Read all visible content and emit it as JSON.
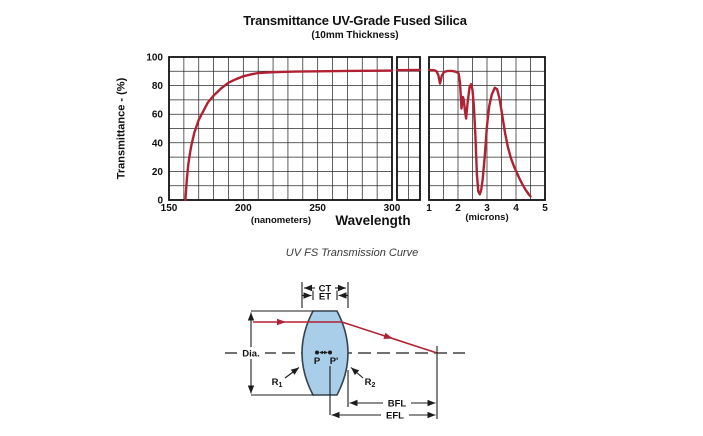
{
  "chart_data": {
    "type": "line",
    "title": "Transmittance UV-Grade Fused Silica",
    "subtitle": "(10mm Thickness)",
    "ylabel": "Transmittance - (%)",
    "xlabel": "Wavelength",
    "ylim": [
      0,
      100
    ],
    "yticks": [
      100,
      80,
      60,
      40,
      20,
      0
    ],
    "grid": true,
    "legend_position": "none",
    "line_color": "#b02233",
    "panels": [
      {
        "unit_label": "(nanometers)",
        "xlim": [
          150,
          300
        ],
        "xticks": [
          150,
          200,
          250,
          300
        ],
        "grid_step_x": 10,
        "grid_step_y": 10,
        "points": [
          [
            161,
            0
          ],
          [
            161.5,
            7
          ],
          [
            162,
            14
          ],
          [
            163,
            25
          ],
          [
            164,
            32
          ],
          [
            165,
            38
          ],
          [
            167,
            47
          ],
          [
            170,
            56
          ],
          [
            173,
            62
          ],
          [
            176,
            68
          ],
          [
            180,
            73
          ],
          [
            185,
            78
          ],
          [
            190,
            82
          ],
          [
            195,
            84.5
          ],
          [
            200,
            86.5
          ],
          [
            205,
            87.8
          ],
          [
            210,
            88.8
          ],
          [
            220,
            89.4
          ],
          [
            235,
            89.8
          ],
          [
            250,
            90
          ],
          [
            270,
            90.3
          ],
          [
            300,
            90.5
          ]
        ]
      },
      {
        "unit_label": "",
        "xlim": [
          0,
          2
        ],
        "xticks": [],
        "grid_step_x": 1,
        "grid_step_y": 10,
        "points": [
          [
            0,
            90.8
          ],
          [
            2,
            91
          ]
        ]
      },
      {
        "unit_label": "(microns)",
        "xlim": [
          1,
          5
        ],
        "xticks": [
          1,
          2,
          3,
          4,
          5
        ],
        "grid_step_x": 0.5,
        "grid_step_y": 10,
        "points": [
          [
            1,
            91
          ],
          [
            1.15,
            90.8
          ],
          [
            1.25,
            90.2
          ],
          [
            1.32,
            87.5
          ],
          [
            1.38,
            81.5
          ],
          [
            1.44,
            87
          ],
          [
            1.52,
            89.5
          ],
          [
            1.65,
            90.3
          ],
          [
            1.8,
            90.3
          ],
          [
            1.95,
            89.5
          ],
          [
            2.02,
            88.5
          ],
          [
            2.07,
            82
          ],
          [
            2.12,
            64
          ],
          [
            2.17,
            72
          ],
          [
            2.2,
            70
          ],
          [
            2.24,
            62
          ],
          [
            2.28,
            57
          ],
          [
            2.33,
            68
          ],
          [
            2.4,
            79
          ],
          [
            2.45,
            81
          ],
          [
            2.5,
            77
          ],
          [
            2.55,
            65
          ],
          [
            2.6,
            45
          ],
          [
            2.65,
            18
          ],
          [
            2.7,
            6
          ],
          [
            2.75,
            4
          ],
          [
            2.8,
            7
          ],
          [
            2.85,
            14
          ],
          [
            2.92,
            30
          ],
          [
            3.0,
            52
          ],
          [
            3.08,
            66
          ],
          [
            3.17,
            74
          ],
          [
            3.27,
            78.5
          ],
          [
            3.35,
            77.5
          ],
          [
            3.43,
            71
          ],
          [
            3.52,
            60
          ],
          [
            3.62,
            47
          ],
          [
            3.72,
            37
          ],
          [
            3.82,
            29.5
          ],
          [
            3.92,
            24
          ],
          [
            4.02,
            19.5
          ],
          [
            4.12,
            15
          ],
          [
            4.22,
            11
          ],
          [
            4.32,
            7.5
          ],
          [
            4.42,
            4.5
          ],
          [
            4.5,
            2.5
          ]
        ]
      }
    ]
  },
  "caption": "UV FS Transmission Curve",
  "lens": {
    "labels": {
      "ct": "CT",
      "et": "ET",
      "dia": "Dia.",
      "p": "P",
      "p_prime": "P'",
      "r1_base": "R",
      "r1_sub": "1",
      "r2_base": "R",
      "r2_sub": "2",
      "bfl": "BFL",
      "efl": "EFL"
    },
    "colors": {
      "lens_fill": "#a9cee9",
      "lens_stroke": "#36424e",
      "ray": "#b02233",
      "line": "#1c1c1c"
    }
  }
}
